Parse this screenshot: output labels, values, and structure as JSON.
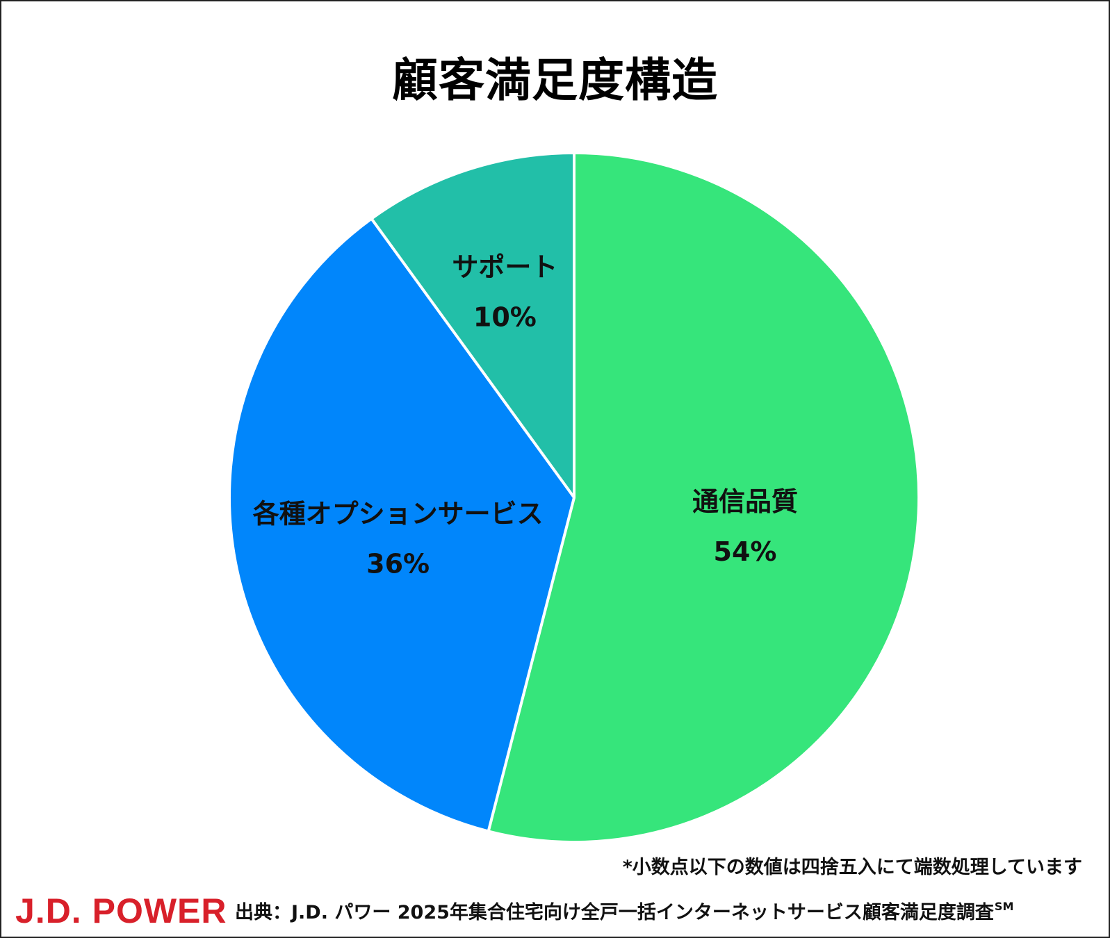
{
  "chart_data": {
    "type": "pie",
    "title": "顧客満足度構造",
    "slices": [
      {
        "label": "通信品質",
        "value": 54,
        "value_label": "54%",
        "color": "#36e57b"
      },
      {
        "label": "各種オプションサービス",
        "value": 36,
        "value_label": "36%",
        "color": "#0186fb"
      },
      {
        "label": "サポート",
        "value": 10,
        "value_label": "10%",
        "color": "#22bfa8"
      }
    ],
    "start": "12 o'clock",
    "direction": "clockwise",
    "legend": "none"
  },
  "note": "*小数点以下の数値は四捨五入にて端数処理しています",
  "logo": "J.D. POWER",
  "source": {
    "text": "出典：J.D. パワー 2025年集合住宅向け全戸一括インターネットサービス顧客満足度調査",
    "mark": "SM"
  }
}
